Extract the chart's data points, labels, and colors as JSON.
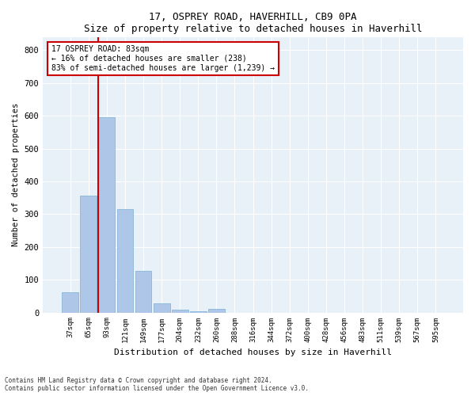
{
  "title1": "17, OSPREY ROAD, HAVERHILL, CB9 0PA",
  "title2": "Size of property relative to detached houses in Haverhill",
  "xlabel": "Distribution of detached houses by size in Haverhill",
  "ylabel": "Number of detached properties",
  "bar_color": "#aec6e8",
  "bar_edge_color": "#7aafd4",
  "marker_color": "#cc0000",
  "categories": [
    "37sqm",
    "65sqm",
    "93sqm",
    "121sqm",
    "149sqm",
    "177sqm",
    "204sqm",
    "232sqm",
    "260sqm",
    "288sqm",
    "316sqm",
    "344sqm",
    "372sqm",
    "400sqm",
    "428sqm",
    "456sqm",
    "483sqm",
    "511sqm",
    "539sqm",
    "567sqm",
    "595sqm"
  ],
  "values": [
    62,
    357,
    597,
    315,
    128,
    27,
    8,
    3,
    10,
    0,
    0,
    0,
    0,
    0,
    0,
    0,
    0,
    0,
    0,
    0,
    0
  ],
  "marker_bin": 2,
  "marker_label1": "17 OSPREY ROAD: 83sqm",
  "marker_label2": "← 16% of detached houses are smaller (238)",
  "marker_label3": "83% of semi-detached houses are larger (1,239) →",
  "ylim": [
    0,
    840
  ],
  "yticks": [
    0,
    100,
    200,
    300,
    400,
    500,
    600,
    700,
    800
  ],
  "footnote1": "Contains HM Land Registry data © Crown copyright and database right 2024.",
  "footnote2": "Contains public sector information licensed under the Open Government Licence v3.0.",
  "bg_color": "#e8f0f8"
}
